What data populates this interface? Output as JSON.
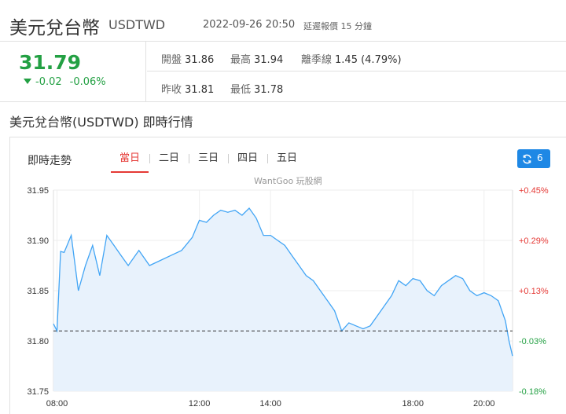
{
  "header": {
    "title": "美元兌台幣",
    "symbol": "USDTWD",
    "timestamp": "2022-09-26 20:50",
    "delay_note": "延遲報價 15 分鐘"
  },
  "quote": {
    "price": "31.79",
    "change": "-0.02",
    "change_pct": "-0.06%",
    "open_label": "開盤",
    "open": "31.86",
    "high_label": "最高",
    "high": "31.94",
    "dispersion_label": "離季線",
    "dispersion": "1.45 (4.79%)",
    "prev_close_label": "昨收",
    "prev_close": "31.81",
    "low_label": "最低",
    "low": "31.78",
    "up_color": "#e53935",
    "down_color": "#23a043"
  },
  "section": {
    "title": "美元兌台幣(USDTWD) 即時行情"
  },
  "card": {
    "label": "即時走勢",
    "tabs": [
      "當日",
      "二日",
      "三日",
      "四日",
      "五日"
    ],
    "active_tab": 0,
    "refresh_count": "6",
    "refresh_icon": "refresh-icon",
    "watermark": "WantGoo 玩股網"
  },
  "chart_data": {
    "type": "area",
    "ylim": [
      31.75,
      31.95
    ],
    "y_ticks": [
      "31.75",
      "31.80",
      "31.85",
      "31.90",
      "31.95"
    ],
    "y_tick_values": [
      31.75,
      31.8,
      31.85,
      31.9,
      31.95
    ],
    "pct_ticks": [
      "-0.18%",
      "-0.03%",
      "+0.13%",
      "+0.29%",
      "+0.45%"
    ],
    "x_ticks": [
      "08:00",
      "12:00",
      "14:00",
      "18:00",
      "20:00"
    ],
    "x_tick_hours": [
      8,
      12,
      14,
      18,
      20
    ],
    "x_range_hours": [
      7.9,
      20.8
    ],
    "reference_line": 31.81,
    "line_color": "#42a5f5",
    "fill_color": "#e8f2fc",
    "x": [
      7.9,
      8.0,
      8.1,
      8.2,
      8.4,
      8.6,
      8.8,
      9.0,
      9.2,
      9.4,
      9.6,
      9.8,
      10.0,
      10.3,
      10.6,
      10.9,
      11.2,
      11.5,
      11.8,
      12.0,
      12.2,
      12.4,
      12.6,
      12.8,
      13.0,
      13.2,
      13.4,
      13.6,
      13.8,
      14.0,
      14.2,
      14.4,
      14.6,
      14.8,
      15.0,
      15.2,
      15.4,
      15.6,
      15.8,
      16.0,
      16.2,
      16.4,
      16.6,
      16.8,
      17.0,
      17.2,
      17.4,
      17.6,
      17.8,
      18.0,
      18.2,
      18.4,
      18.6,
      18.8,
      19.0,
      19.2,
      19.4,
      19.6,
      19.8,
      20.0,
      20.2,
      20.4,
      20.6,
      20.7,
      20.8
    ],
    "y": [
      31.817,
      31.81,
      31.889,
      31.888,
      31.905,
      31.85,
      31.875,
      31.895,
      31.865,
      31.905,
      31.895,
      31.885,
      31.875,
      31.89,
      31.875,
      31.88,
      31.885,
      31.89,
      31.903,
      31.92,
      31.918,
      31.925,
      31.93,
      31.928,
      31.93,
      31.925,
      31.932,
      31.922,
      31.905,
      31.905,
      31.9,
      31.895,
      31.885,
      31.875,
      31.865,
      31.86,
      31.85,
      31.84,
      31.83,
      31.81,
      31.818,
      31.815,
      31.812,
      31.815,
      31.825,
      31.835,
      31.845,
      31.86,
      31.855,
      31.862,
      31.86,
      31.85,
      31.845,
      31.855,
      31.86,
      31.865,
      31.862,
      31.85,
      31.845,
      31.848,
      31.845,
      31.84,
      31.82,
      31.8,
      31.785
    ]
  }
}
